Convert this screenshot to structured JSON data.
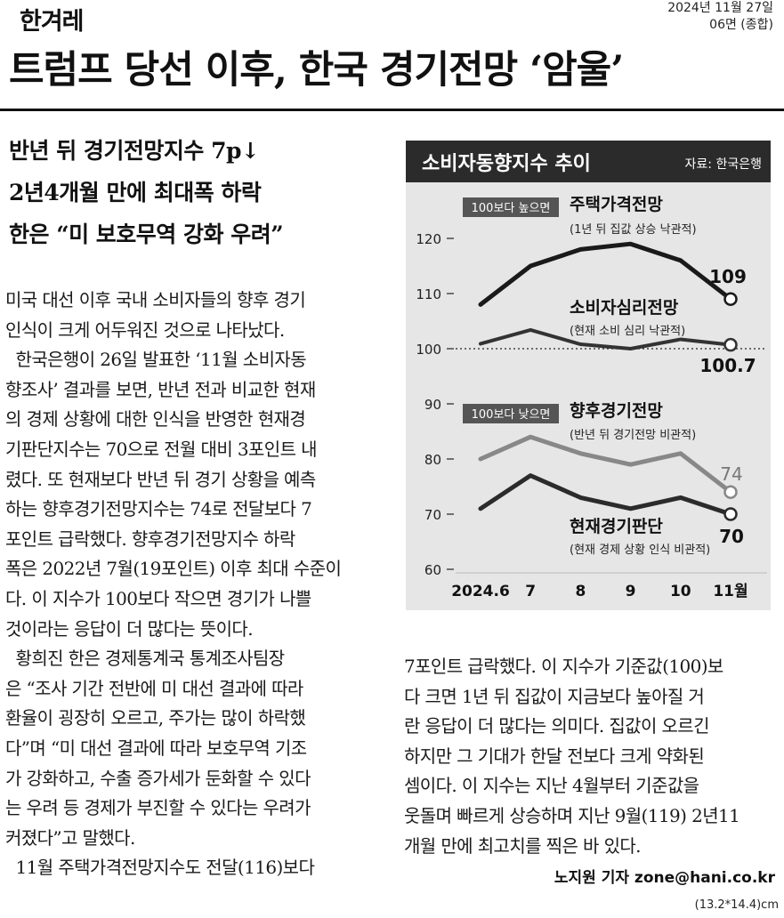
{
  "masthead": "한겨레",
  "edition": {
    "date": "2024년 11월 27일",
    "section": "06면 (종합)"
  },
  "headline": "트럼프 당선 이후, 한국 경기전망 ‘암울’",
  "subheads": [
    "반년 뒤 경기전망지수 7p↓",
    "2년4개월 만에 최대폭 하락",
    "한은 “미 보호무역 강화 우려”"
  ],
  "body_left": [
    "미국 대선 이후 국내 소비자들의 향후 경기",
    "인식이 크게 어두워진 것으로 나타났다.",
    "  한국은행이 26일 발표한 ‘11월 소비자동",
    "향조사’ 결과를 보면, 반년 전과 비교한 현재",
    "의 경제 상황에 대한 인식을 반영한 현재경",
    "기판단지수는 70으로 전월 대비 3포인트 내",
    "렸다. 또 현재보다 반년 뒤 경기 상황을 예측",
    "하는 향후경기전망지수는 74로 전달보다 7",
    "포인트 급락했다. 향후경기전망지수 하락",
    "폭은 2022년 7월(19포인트) 이후 최대 수준이",
    "다. 이 지수가 100보다 작으면 경기가 나쁠",
    "것이라는 응답이 더 많다는 뜻이다.",
    "  황희진 한은 경제통계국 통계조사팀장",
    "은 “조사 기간 전반에 미 대선 결과에 따라",
    "환율이 굉장히 오르고, 주가는 많이 하락했",
    "다”며 “미 대선 결과에 따라 보호무역 기조",
    "가 강화하고, 수출 증가세가 둔화할 수 있다",
    "는 우려 등 경제가 부진할 수 있다는 우려가",
    "커졌다”고 말했다.",
    "  11월 주택가격전망지수도 전달(116)보다"
  ],
  "body_right": [
    "7포인트 급락했다. 이 지수가 기준값(100)보",
    "다 크면 1년 뒤 집값이 지금보다 높아질 거",
    "란 응답이 더 많다는 의미다. 집값이 오르긴",
    "하지만 그 기대가 한달 전보다 크게 약화된",
    "셈이다. 이 지수는 지난 4월부터 기준값을",
    "웃돌며 빠르게 상승하며 지난 9월(119) 2년11",
    "개월 만에 최고치를 찍은 바 있다."
  ],
  "byline": "노지원 기자 zone@hani.co.kr",
  "size_note": "(13.2*14.4)cm",
  "chart_data": {
    "type": "line",
    "title": "소비자동향지수 추이",
    "source": "자료: 한국은행",
    "categories": [
      "2024.6",
      "7",
      "8",
      "9",
      "10",
      "11월"
    ],
    "ylim": [
      60,
      125
    ],
    "yticks": [
      60,
      70,
      80,
      90,
      100,
      110,
      120
    ],
    "reference_line": 100,
    "badges": {
      "above": "100보다 높으면",
      "below": "100보다 낮으면"
    },
    "series": [
      {
        "name": "주택가격전망",
        "desc": "(1년 뒤 집값 상승 낙관적)",
        "values": [
          108,
          115,
          118,
          119,
          116,
          109
        ],
        "end_label": "109",
        "color": "#1a1a1a"
      },
      {
        "name": "소비자심리전망",
        "desc": "(현재 소비 심리 낙관적)",
        "values": [
          100.9,
          103.4,
          100.8,
          100.0,
          101.7,
          100.7
        ],
        "end_label": "100.7",
        "color": "#333333"
      },
      {
        "name": "향후경기전망",
        "desc": "(반년 뒤 경기전망 비관적)",
        "values": [
          80,
          84,
          81,
          79,
          81,
          74
        ],
        "end_label": "74",
        "color": "#888888"
      },
      {
        "name": "현재경기판단",
        "desc": "(현재 경제 상황 인식 비관적)",
        "values": [
          71,
          77,
          73,
          71,
          73,
          70
        ],
        "end_label": "70",
        "color": "#2b2b2b"
      }
    ]
  }
}
